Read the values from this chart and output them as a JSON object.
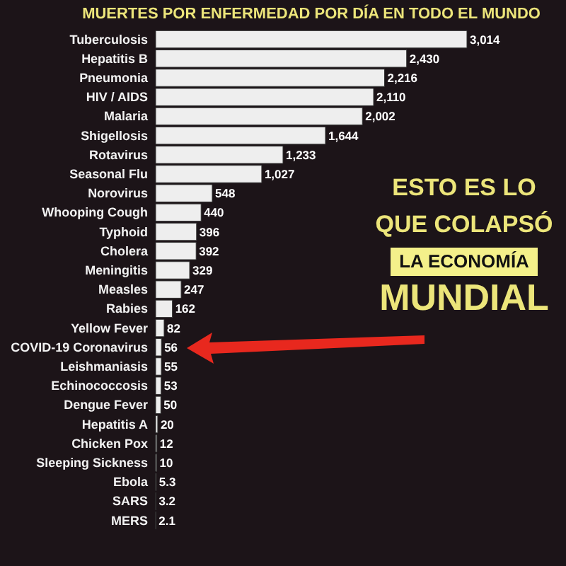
{
  "chart_data": {
    "type": "bar",
    "orientation": "horizontal",
    "title": "MUERTES POR ENFERMEDAD POR DÍA EN TODO EL MUNDO",
    "categories": [
      "Tuberculosis",
      "Hepatitis B",
      "Pneumonia",
      "HIV / AIDS",
      "Malaria",
      "Shigellosis",
      "Rotavirus",
      "Seasonal Flu",
      "Norovirus",
      "Whooping Cough",
      "Typhoid",
      "Cholera",
      "Meningitis",
      "Measles",
      "Rabies",
      "Yellow Fever",
      "COVID-19 Coronavirus",
      "Leishmaniasis",
      "Echinococcosis",
      "Dengue Fever",
      "Hepatitis A",
      "Chicken Pox",
      "Sleeping Sickness",
      "Ebola",
      "SARS",
      "MERS"
    ],
    "values": [
      3014,
      2430,
      2216,
      2110,
      2002,
      1644,
      1233,
      1027,
      548,
      440,
      396,
      392,
      329,
      247,
      162,
      82,
      56,
      55,
      53,
      50,
      20,
      12,
      10,
      5.3,
      3.2,
      2.1
    ],
    "value_labels": [
      "3,014",
      "2,430",
      "2,216",
      "2,110",
      "2,002",
      "1,644",
      "1,233",
      "1,027",
      "548",
      "440",
      "396",
      "392",
      "329",
      "247",
      "162",
      "82",
      "56",
      "55",
      "53",
      "50",
      "20",
      "12",
      "10",
      "5.3",
      "3.2",
      "2.1"
    ],
    "color": "#eeeeee",
    "annotations": [
      "ESTO ES LO",
      "QUE COLAPSÓ",
      "LA ECONOMÍA",
      "MUNDIAL"
    ]
  }
}
